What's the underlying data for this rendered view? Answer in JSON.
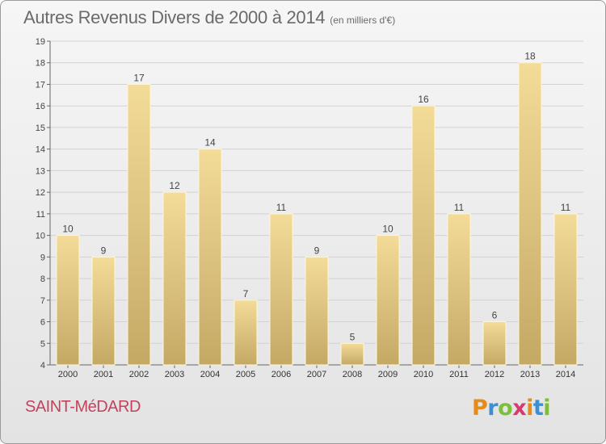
{
  "header": {
    "title": "Autres Revenus Divers de 2000 à 2014",
    "subtitle": "(en milliers d'€)"
  },
  "footer": {
    "commune": "SAINT-MéDARD",
    "brand": {
      "letters": [
        "P",
        "r",
        "o",
        "x",
        "i",
        "t",
        "i"
      ],
      "colors": [
        "#e88a1a",
        "#3d8fd4",
        "#7bbf3a",
        "#d83a6f",
        "#e88a1a",
        "#3d8fd4",
        "#7bbf3a"
      ]
    }
  },
  "chart_data": {
    "type": "bar",
    "title": "Autres Revenus Divers de 2000 à 2014",
    "subtitle": "(en milliers d'€)",
    "categories": [
      "2000",
      "2001",
      "2002",
      "2003",
      "2004",
      "2005",
      "2006",
      "2007",
      "2008",
      "2009",
      "2010",
      "2011",
      "2012",
      "2013",
      "2014"
    ],
    "values": [
      10,
      9,
      17,
      12,
      14,
      7,
      11,
      9,
      5,
      10,
      16,
      11,
      6,
      18,
      11
    ],
    "ylim": [
      4,
      19
    ],
    "yticks": [
      4,
      5,
      6,
      7,
      8,
      9,
      10,
      11,
      12,
      13,
      14,
      15,
      16,
      17,
      18,
      19
    ],
    "grid": true,
    "bar_color_top": "#f3dc98",
    "bar_color_bottom": "#c4a965"
  }
}
